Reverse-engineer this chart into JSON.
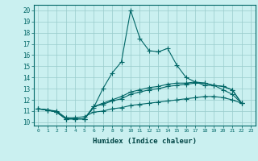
{
  "title": "",
  "xlabel": "Humidex (Indice chaleur)",
  "bg_color": "#caf0f0",
  "line_color": "#006666",
  "xlim": [
    -0.5,
    23.5
  ],
  "ylim": [
    9.7,
    20.5
  ],
  "xticks": [
    0,
    1,
    2,
    3,
    4,
    5,
    6,
    7,
    8,
    9,
    10,
    11,
    12,
    13,
    14,
    15,
    16,
    17,
    18,
    19,
    20,
    21,
    22,
    23
  ],
  "yticks": [
    10,
    11,
    12,
    13,
    14,
    15,
    16,
    17,
    18,
    19,
    20
  ],
  "series": [
    [
      11.2,
      11.1,
      10.9,
      10.3,
      10.3,
      10.3,
      11.3,
      13.0,
      14.4,
      15.4,
      20.0,
      17.5,
      16.4,
      16.3,
      16.6,
      15.1,
      14.0,
      13.6,
      13.3,
      13.3,
      12.9,
      12.5,
      11.7
    ],
    [
      11.2,
      11.1,
      10.9,
      10.3,
      10.3,
      10.3,
      11.4,
      11.7,
      12.0,
      12.3,
      12.7,
      12.9,
      13.1,
      13.2,
      13.4,
      13.5,
      13.5,
      13.6,
      13.5,
      13.3,
      13.2,
      12.9,
      11.7
    ],
    [
      11.2,
      11.1,
      10.9,
      10.3,
      10.3,
      10.3,
      11.4,
      11.6,
      11.9,
      12.1,
      12.5,
      12.7,
      12.9,
      13.0,
      13.2,
      13.3,
      13.4,
      13.5,
      13.5,
      13.3,
      13.2,
      12.9,
      11.7
    ],
    [
      11.2,
      11.1,
      11.0,
      10.4,
      10.4,
      10.5,
      10.9,
      11.0,
      11.2,
      11.3,
      11.5,
      11.6,
      11.7,
      11.8,
      11.9,
      12.0,
      12.1,
      12.2,
      12.3,
      12.3,
      12.2,
      12.0,
      11.7
    ]
  ],
  "x_series": [
    [
      0,
      1,
      2,
      3,
      4,
      5,
      6,
      7,
      8,
      9,
      10,
      11,
      12,
      13,
      14,
      15,
      16,
      17,
      18,
      19,
      20,
      21,
      22
    ],
    [
      0,
      1,
      2,
      3,
      4,
      5,
      6,
      7,
      8,
      9,
      10,
      11,
      12,
      13,
      14,
      15,
      16,
      17,
      18,
      19,
      20,
      21,
      22
    ],
    [
      0,
      1,
      2,
      3,
      4,
      5,
      6,
      7,
      8,
      9,
      10,
      11,
      12,
      13,
      14,
      15,
      16,
      17,
      18,
      19,
      20,
      21,
      22
    ],
    [
      0,
      1,
      2,
      3,
      4,
      5,
      6,
      7,
      8,
      9,
      10,
      11,
      12,
      13,
      14,
      15,
      16,
      17,
      18,
      19,
      20,
      21,
      22
    ]
  ]
}
